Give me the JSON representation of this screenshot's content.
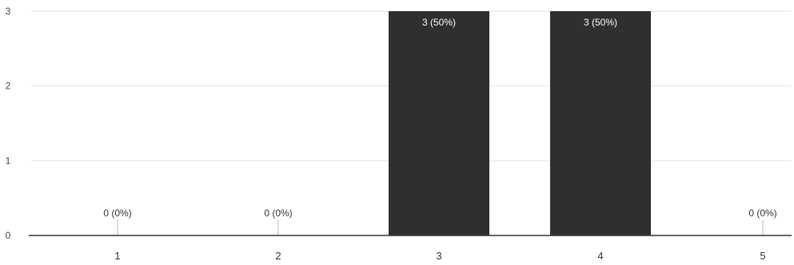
{
  "colors": {
    "bar": "#2f2f2f",
    "grid": "#e6e6e6",
    "axis": "#333333",
    "background": "#ffffff"
  },
  "chart_data": {
    "type": "bar",
    "categories": [
      "1",
      "2",
      "3",
      "4",
      "5"
    ],
    "values": [
      0,
      0,
      3,
      3,
      0
    ],
    "data_labels": [
      "0 (0%)",
      "0 (0%)",
      "3 (50%)",
      "3 (50%)",
      "0 (0%)"
    ],
    "y_ticks": [
      "0",
      "1",
      "2",
      "3"
    ],
    "ylim": [
      0,
      3
    ],
    "grid": true,
    "legend": "none"
  }
}
